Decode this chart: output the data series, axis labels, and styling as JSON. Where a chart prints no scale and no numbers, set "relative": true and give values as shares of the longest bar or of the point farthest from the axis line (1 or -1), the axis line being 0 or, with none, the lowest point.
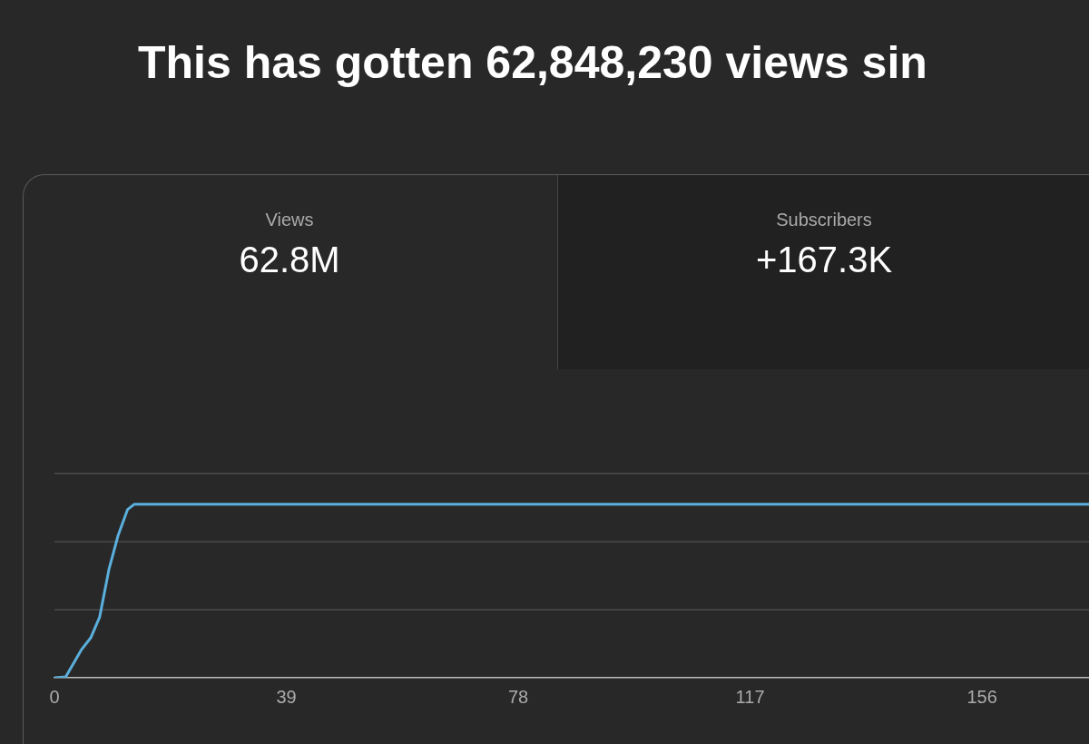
{
  "chart_data": {
    "type": "line",
    "title": "This has gotten 62,848,230 views sin",
    "annotations": [
      "Views",
      "62.8M",
      "Subscribers",
      "+167.3K"
    ],
    "relative": true,
    "marker": "none",
    "line_style": "solid",
    "ref_lines": [
      {
        "axis": "y",
        "value": 0.393,
        "color": "#4a4a4a"
      },
      {
        "axis": "y",
        "value": 0.785,
        "color": "#4a4a4a"
      },
      {
        "axis": "y",
        "value": 1.178,
        "color": "#4a4a4a"
      }
    ],
    "xlim": [
      0,
      174
    ],
    "xticks": [
      0,
      39,
      78,
      117,
      156
    ],
    "series": [
      {
        "color": "#5aafdc",
        "x": [
          0,
          1.9,
          4.5,
          6.1,
          7.6,
          9.2,
          10.7,
          12.3,
          13.4,
          174
        ],
        "values": [
          0,
          0.005,
          0.16,
          0.23,
          0.35,
          0.63,
          0.82,
          0.97,
          1,
          1
        ]
      }
    ]
  }
}
